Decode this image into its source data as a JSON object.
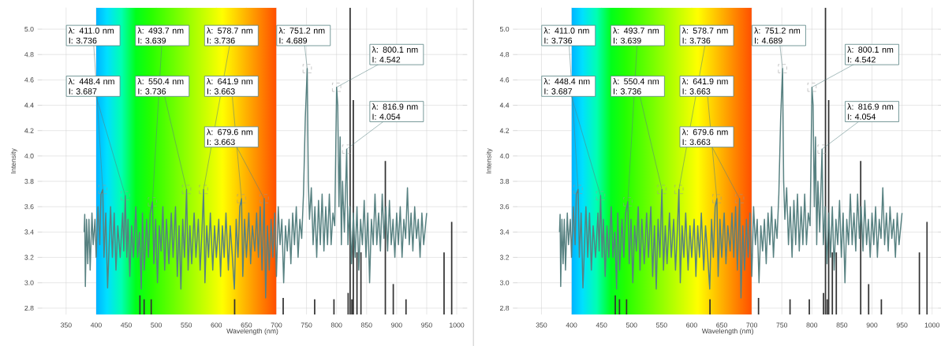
{
  "chart_data": [
    {
      "type": "line",
      "xlabel": "Wavelength (nm)",
      "ylabel": "Intensity",
      "grid": true,
      "xlim": [
        310,
        1010
      ],
      "ylim": [
        2.75,
        5.17
      ],
      "xticks": [
        350,
        400,
        450,
        500,
        550,
        600,
        650,
        700,
        750,
        800,
        850,
        900,
        950,
        1000
      ],
      "yticks": [
        2.8,
        {
          "value": 3.0,
          "label": "3.0"
        },
        3.2,
        3.4,
        3.6,
        3.8,
        {
          "value": 4.0,
          "label": "4.0"
        },
        4.2,
        4.4,
        4.6,
        4.8,
        {
          "value": 5.0,
          "label": "5.0"
        }
      ],
      "bands": [
        {
          "axis": "x",
          "from": 400,
          "to": 700
        }
      ],
      "series": [
        {
          "color": "#578181",
          "x": [
            380,
            381,
            382,
            384,
            386,
            388,
            390,
            393,
            395,
            398,
            400,
            403,
            406,
            408,
            411,
            413,
            416,
            419,
            424,
            427,
            430,
            433,
            436,
            440,
            444,
            446,
            448.4,
            451,
            453,
            456,
            459,
            462,
            466,
            469,
            472,
            475,
            477,
            480,
            484,
            487,
            490,
            493.7,
            496,
            499,
            502,
            505,
            508,
            511,
            514,
            517,
            521,
            525,
            528,
            532,
            535,
            538,
            541,
            544,
            547,
            550.4,
            553,
            556,
            559,
            563,
            566,
            570,
            573,
            576,
            578.7,
            581,
            584,
            587,
            590,
            594,
            597,
            600,
            604,
            607,
            610,
            613,
            616,
            620,
            623,
            626,
            630,
            633,
            636,
            639,
            641.9,
            644,
            647,
            650,
            654,
            657,
            660,
            664,
            667,
            670,
            673,
            676,
            679.6,
            682,
            685,
            688,
            691,
            694,
            697,
            700,
            703,
            706,
            709,
            712,
            715,
            718,
            721,
            724,
            727,
            730,
            733,
            736,
            739,
            742,
            745,
            748,
            751.2,
            753,
            755,
            758,
            761,
            764,
            767,
            770,
            773,
            776,
            779,
            782,
            785,
            788,
            791,
            794,
            797,
            800.1,
            802,
            804,
            806,
            808,
            810,
            813,
            816.9,
            819,
            822,
            825,
            828,
            831,
            834,
            837,
            840,
            843,
            846,
            849,
            852,
            855,
            858,
            861,
            864,
            867,
            870,
            873,
            876,
            879,
            882,
            885,
            888,
            891,
            894,
            897,
            900,
            903,
            906,
            909,
            912,
            915,
            918,
            921,
            924,
            927,
            930,
            933,
            936,
            939,
            942,
            945,
            948,
            950
          ],
          "values": [
            3.4,
            3.54,
            2.97,
            3.5,
            3.15,
            3.5,
            3.1,
            3.55,
            3.3,
            3.5,
            3.2,
            3.6,
            3.3,
            3.7,
            3.736,
            3.2,
            3.55,
            2.96,
            3.6,
            3.2,
            3.55,
            3.1,
            3.45,
            3.2,
            3.55,
            3.25,
            3.687,
            3.2,
            3.5,
            3.05,
            3.45,
            3.2,
            3.6,
            3.2,
            3.4,
            2.95,
            3.55,
            3.1,
            3.5,
            3.2,
            3.55,
            3.639,
            3.15,
            3.5,
            3.0,
            3.45,
            3.25,
            3.6,
            3.1,
            3.5,
            3.15,
            3.55,
            3.2,
            3.6,
            3.05,
            3.45,
            2.95,
            3.5,
            3.2,
            3.736,
            3.1,
            3.45,
            3.15,
            3.55,
            3.2,
            3.5,
            3.1,
            3.4,
            3.736,
            3.0,
            3.45,
            3.2,
            3.55,
            3.1,
            3.45,
            3.2,
            3.5,
            3.05,
            3.45,
            3.2,
            3.55,
            3.1,
            3.45,
            3.25,
            2.95,
            3.5,
            3.2,
            3.6,
            3.663,
            3.05,
            3.5,
            3.2,
            3.55,
            3.15,
            3.45,
            3.25,
            3.55,
            3.2,
            3.6,
            3.1,
            3.663,
            2.88,
            3.45,
            3.1,
            3.5,
            3.2,
            3.55,
            3.05,
            3.6,
            3.3,
            3.5,
            3.0,
            3.45,
            3.25,
            3.5,
            3.15,
            3.55,
            3.3,
            3.6,
            3.2,
            3.5,
            3.35,
            3.7,
            4.3,
            4.689,
            3.8,
            3.5,
            3.75,
            3.3,
            3.6,
            3.2,
            3.65,
            3.3,
            3.7,
            3.25,
            3.6,
            3.3,
            3.7,
            3.3,
            3.55,
            3.45,
            4.542,
            4.4,
            3.6,
            4.15,
            3.3,
            3.8,
            3.4,
            4.054,
            3.3,
            3.6,
            3.15,
            3.55,
            3.2,
            3.6,
            3.1,
            3.5,
            3.3,
            3.65,
            3.2,
            3.55,
            3.0,
            3.5,
            3.3,
            3.7,
            3.3,
            3.55,
            3.25,
            3.7,
            3.35,
            3.6,
            3.25,
            3.65,
            3.3,
            3.5,
            3.2,
            3.55,
            3.3,
            3.6,
            3.2,
            3.5,
            3.35,
            3.75,
            3.3,
            3.55,
            3.25,
            3.6,
            3.35,
            3.5,
            3.2,
            3.55,
            3.3,
            3.45,
            3.55
          ]
        },
        {
          "type": "bar",
          "color": "#333333",
          "x": [
            472.8,
            479.8,
            491.6,
            630.4,
            711.2,
            763.6,
            795.7,
            819.3,
            822.6,
            825.5,
            827.9,
            834.0,
            840.6,
            881.2,
            894.4,
            915.6,
            978.9,
            991.6
          ],
          "values": [
            2.9,
            2.87,
            2.87,
            2.87,
            2.88,
            2.87,
            2.87,
            2.92,
            5.17,
            2.87,
            4.44,
            3.24,
            3.24,
            3.96,
            2.99,
            2.87,
            3.24,
            3.48
          ]
        }
      ],
      "annotations": [
        {
          "text": "λ: 411.0 nm I: 3.736",
          "x": 411.0,
          "y": 3.736
        },
        {
          "text": "λ: 448.4 nm I: 3.687",
          "x": 448.4,
          "y": 3.687
        },
        {
          "text": "λ: 493.7 nm I: 3.639",
          "x": 493.7,
          "y": 3.639
        },
        {
          "text": "λ: 550.4 nm I: 3.736",
          "x": 550.4,
          "y": 3.736
        },
        {
          "text": "λ: 578.7 nm I: 3.736",
          "x": 578.7,
          "y": 3.736
        },
        {
          "text": "λ: 641.9 nm I: 3.663",
          "x": 641.9,
          "y": 3.663
        },
        {
          "text": "λ: 679.6 nm I: 3.663",
          "x": 679.6,
          "y": 3.663
        },
        {
          "text": "λ: 751.2 nm I: 4.689",
          "x": 751.2,
          "y": 4.689
        },
        {
          "text": "λ: 800.1 nm I: 4.542",
          "x": 800.1,
          "y": 4.542
        },
        {
          "text": "λ: 816.9 nm I: 4.054",
          "x": 816.9,
          "y": 4.054
        }
      ]
    },
    {
      "type": "line",
      "xlabel": "Wavelength (nm)",
      "ylabel": "Intensity",
      "grid": true,
      "xlim": [
        310,
        1010
      ],
      "ylim": [
        2.75,
        5.17
      ],
      "xticks": [
        350,
        400,
        450,
        500,
        550,
        600,
        650,
        700,
        750,
        800,
        850,
        900,
        950,
        1000
      ],
      "yticks": [
        2.8,
        {
          "value": 3.0,
          "label": "3.0"
        },
        3.2,
        3.4,
        3.6,
        3.8,
        {
          "value": 4.0,
          "label": "4.0"
        },
        4.2,
        4.4,
        4.6,
        4.8,
        {
          "value": 5.0,
          "label": "5.0"
        }
      ],
      "bands": [
        {
          "axis": "x",
          "from": 400,
          "to": 700
        }
      ],
      "series": [
        {
          "color": "#578181",
          "x": [
            380,
            381,
            382,
            384,
            386,
            388,
            390,
            393,
            395,
            398,
            400,
            403,
            406,
            408,
            411,
            413,
            416,
            419,
            424,
            427,
            430,
            433,
            436,
            440,
            444,
            446,
            448.4,
            451,
            453,
            456,
            459,
            462,
            466,
            469,
            472,
            475,
            477,
            480,
            484,
            487,
            490,
            493.7,
            496,
            499,
            502,
            505,
            508,
            511,
            514,
            517,
            521,
            525,
            528,
            532,
            535,
            538,
            541,
            544,
            547,
            550.4,
            553,
            556,
            559,
            563,
            566,
            570,
            573,
            576,
            578.7,
            581,
            584,
            587,
            590,
            594,
            597,
            600,
            604,
            607,
            610,
            613,
            616,
            620,
            623,
            626,
            630,
            633,
            636,
            639,
            641.9,
            644,
            647,
            650,
            654,
            657,
            660,
            664,
            667,
            670,
            673,
            676,
            679.6,
            682,
            685,
            688,
            691,
            694,
            697,
            700,
            703,
            706,
            709,
            712,
            715,
            718,
            721,
            724,
            727,
            730,
            733,
            736,
            739,
            742,
            745,
            748,
            751.2,
            753,
            755,
            758,
            761,
            764,
            767,
            770,
            773,
            776,
            779,
            782,
            785,
            788,
            791,
            794,
            797,
            800.1,
            802,
            804,
            806,
            808,
            810,
            813,
            816.9,
            819,
            822,
            825,
            828,
            831,
            834,
            837,
            840,
            843,
            846,
            849,
            852,
            855,
            858,
            861,
            864,
            867,
            870,
            873,
            876,
            879,
            882,
            885,
            888,
            891,
            894,
            897,
            900,
            903,
            906,
            909,
            912,
            915,
            918,
            921,
            924,
            927,
            930,
            933,
            936,
            939,
            942,
            945,
            948,
            950
          ],
          "values": [
            3.4,
            3.54,
            2.97,
            3.5,
            3.15,
            3.5,
            3.1,
            3.55,
            3.3,
            3.5,
            3.2,
            3.6,
            3.3,
            3.7,
            3.736,
            3.2,
            3.55,
            2.96,
            3.6,
            3.2,
            3.55,
            3.1,
            3.45,
            3.2,
            3.55,
            3.25,
            3.687,
            3.2,
            3.5,
            3.05,
            3.45,
            3.2,
            3.6,
            3.2,
            3.4,
            2.95,
            3.55,
            3.1,
            3.5,
            3.2,
            3.55,
            3.639,
            3.15,
            3.5,
            3.0,
            3.45,
            3.25,
            3.6,
            3.1,
            3.5,
            3.15,
            3.55,
            3.2,
            3.6,
            3.05,
            3.45,
            2.95,
            3.5,
            3.2,
            3.736,
            3.1,
            3.45,
            3.15,
            3.55,
            3.2,
            3.5,
            3.1,
            3.4,
            3.736,
            3.0,
            3.45,
            3.2,
            3.55,
            3.1,
            3.45,
            3.2,
            3.5,
            3.05,
            3.45,
            3.2,
            3.55,
            3.1,
            3.45,
            3.25,
            2.95,
            3.5,
            3.2,
            3.6,
            3.663,
            3.05,
            3.5,
            3.2,
            3.55,
            3.15,
            3.45,
            3.25,
            3.55,
            3.2,
            3.6,
            3.1,
            3.663,
            2.88,
            3.45,
            3.1,
            3.5,
            3.2,
            3.55,
            3.05,
            3.6,
            3.3,
            3.5,
            3.0,
            3.45,
            3.25,
            3.5,
            3.15,
            3.55,
            3.3,
            3.6,
            3.2,
            3.5,
            3.35,
            3.7,
            4.3,
            4.689,
            3.8,
            3.5,
            3.75,
            3.3,
            3.6,
            3.2,
            3.65,
            3.3,
            3.7,
            3.25,
            3.6,
            3.3,
            3.7,
            3.3,
            3.55,
            3.45,
            4.542,
            4.4,
            3.6,
            4.15,
            3.3,
            3.8,
            3.4,
            4.054,
            3.3,
            3.6,
            3.15,
            3.55,
            3.2,
            3.6,
            3.1,
            3.5,
            3.3,
            3.65,
            3.2,
            3.55,
            3.0,
            3.5,
            3.3,
            3.7,
            3.3,
            3.55,
            3.25,
            3.7,
            3.35,
            3.6,
            3.25,
            3.65,
            3.3,
            3.5,
            3.2,
            3.55,
            3.3,
            3.6,
            3.2,
            3.5,
            3.35,
            3.75,
            3.3,
            3.55,
            3.25,
            3.6,
            3.35,
            3.5,
            3.2,
            3.55,
            3.3,
            3.45,
            3.55
          ]
        },
        {
          "type": "bar",
          "color": "#333333",
          "x": [
            472.8,
            479.8,
            491.6,
            630.4,
            711.2,
            763.6,
            795.7,
            819.3,
            822.6,
            825.5,
            827.9,
            834.0,
            840.6,
            881.2,
            894.4,
            915.6,
            978.9,
            991.6
          ],
          "values": [
            2.9,
            2.87,
            2.87,
            2.87,
            2.88,
            2.87,
            2.87,
            2.92,
            5.17,
            2.87,
            4.44,
            3.24,
            3.24,
            3.96,
            2.99,
            2.87,
            3.24,
            3.48
          ]
        }
      ],
      "annotations": [
        {
          "text": "λ: 411.0 nm I: 3.736",
          "x": 411.0,
          "y": 3.736
        },
        {
          "text": "λ: 448.4 nm I: 3.687",
          "x": 448.4,
          "y": 3.687
        },
        {
          "text": "λ: 493.7 nm I: 3.639",
          "x": 493.7,
          "y": 3.639
        },
        {
          "text": "λ: 550.4 nm I: 3.736",
          "x": 550.4,
          "y": 3.736
        },
        {
          "text": "λ: 578.7 nm I: 3.736",
          "x": 578.7,
          "y": 3.736
        },
        {
          "text": "λ: 641.9 nm I: 3.663",
          "x": 641.9,
          "y": 3.663
        },
        {
          "text": "λ: 679.6 nm I: 3.663",
          "x": 679.6,
          "y": 3.663
        },
        {
          "text": "λ: 751.2 nm I: 4.689",
          "x": 751.2,
          "y": 4.689
        },
        {
          "text": "λ: 800.1 nm I: 4.542",
          "x": 800.1,
          "y": 4.542
        },
        {
          "text": "λ: 816.9 nm I: 4.054",
          "x": 816.9,
          "y": 4.054
        }
      ]
    }
  ]
}
